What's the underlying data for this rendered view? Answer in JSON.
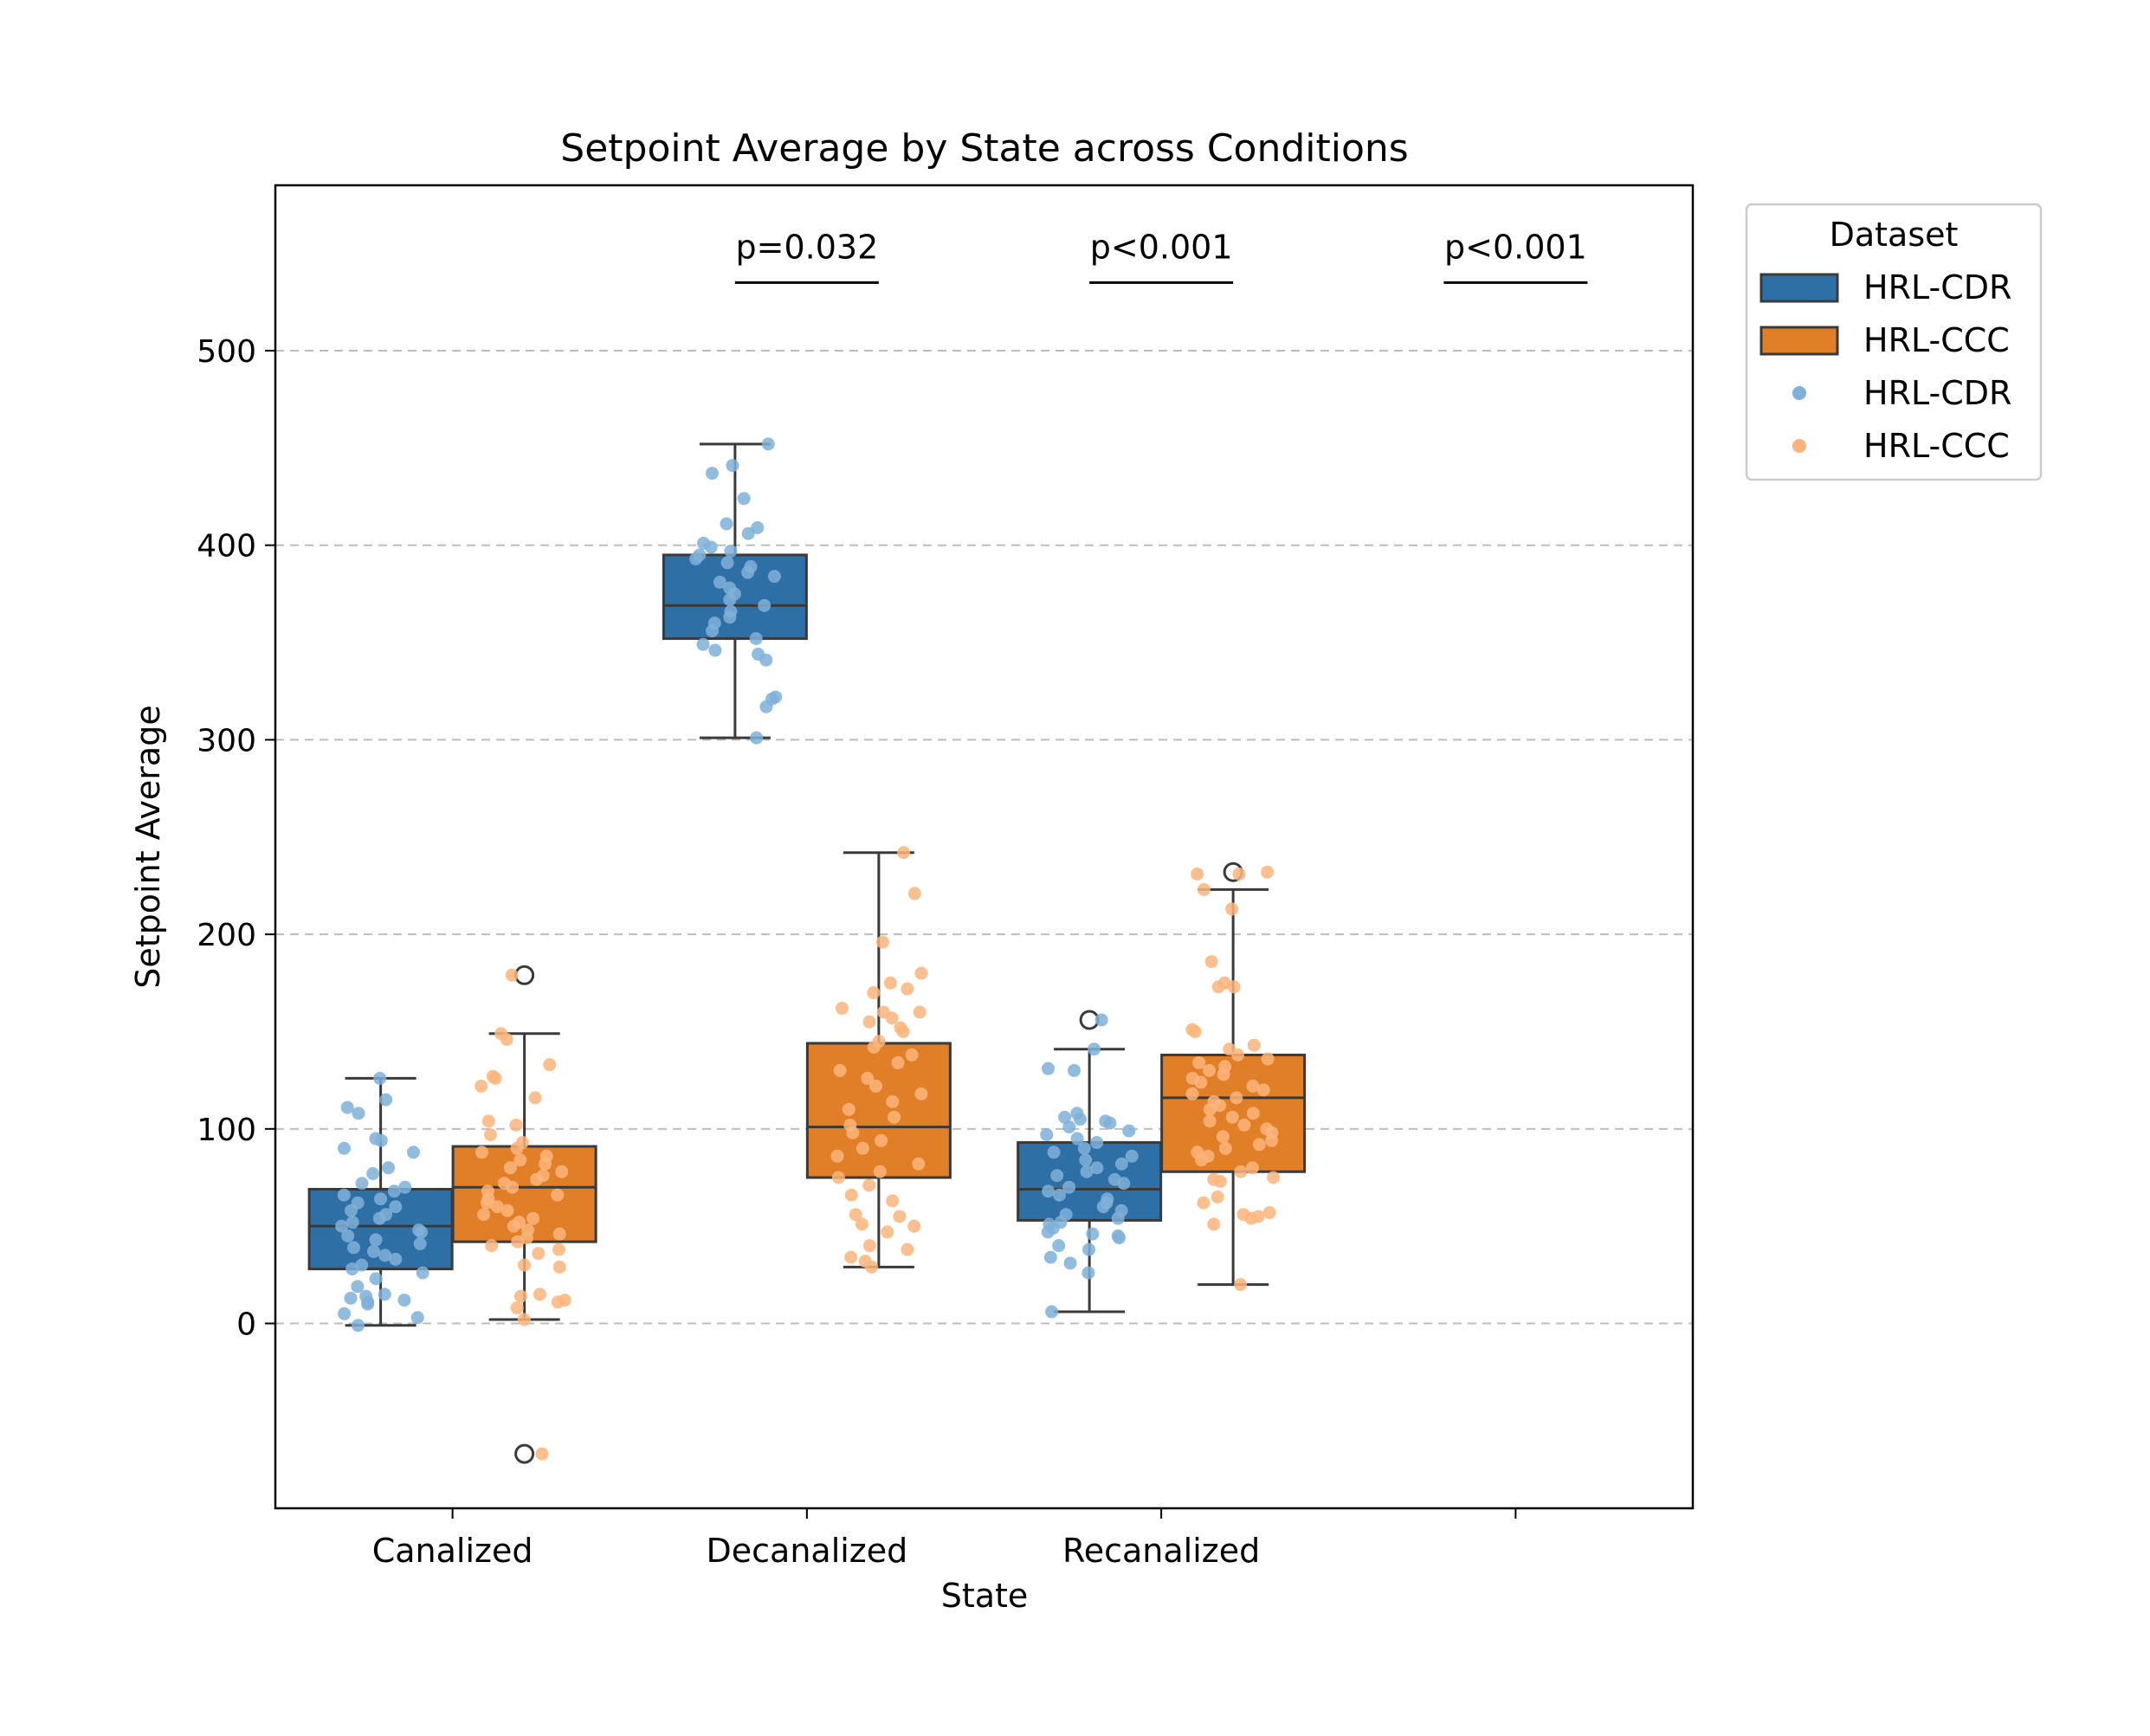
{
  "chart_data": {
    "type": "box",
    "title": "Setpoint Average by State across Conditions",
    "xlabel": "State",
    "ylabel": "Setpoint Average",
    "categories": [
      "Canalized",
      "Decanalized",
      "Recanalized",
      ""
    ],
    "ylim": [
      -95,
      585
    ],
    "yticks": [
      0,
      100,
      200,
      300,
      400,
      500
    ],
    "grid": "y-dashed",
    "legend": {
      "title": "Dataset",
      "placement": "outside-top-right",
      "entries": [
        {
          "label": "HRL-CDR",
          "kind": "box",
          "color": "#2e6fa6"
        },
        {
          "label": "HRL-CCC",
          "kind": "box",
          "color": "#e07f27"
        },
        {
          "label": "HRL-CDR",
          "kind": "point",
          "color": "#7fb0d8"
        },
        {
          "label": "HRL-CCC",
          "kind": "point",
          "color": "#fbb57c"
        }
      ]
    },
    "series": [
      {
        "name": "HRL-CDR",
        "box_color": "#2e6fa6",
        "point_color": "#7fb0d8",
        "boxes": [
          {
            "category": "Canalized",
            "whisker_low": -1,
            "q1": 28,
            "median": 50,
            "q3": 69,
            "whisker_high": 126,
            "outliers": []
          },
          {
            "category": "Decanalized",
            "whisker_low": 301,
            "q1": 352,
            "median": 369,
            "q3": 395,
            "whisker_high": 452,
            "outliers": []
          },
          {
            "category": "Recanalized",
            "whisker_low": 6,
            "q1": 53,
            "median": 69,
            "q3": 93,
            "whisker_high": 141,
            "outliers": [
              156
            ]
          }
        ],
        "points": [
          [
            126,
            115,
            111,
            108,
            95,
            94,
            90,
            88,
            80,
            77,
            72,
            70,
            68,
            66,
            64,
            62,
            60,
            58,
            56,
            54,
            52,
            50,
            48,
            47,
            45,
            43,
            41,
            39,
            37,
            35,
            33,
            30,
            28,
            26,
            23,
            19,
            15,
            14,
            13,
            12,
            11,
            10,
            5,
            3,
            -1
          ],
          [
            452,
            441,
            437,
            424,
            411,
            409,
            406,
            401,
            399,
            397,
            395,
            393,
            391,
            389,
            386,
            384,
            381,
            378,
            375,
            372,
            369,
            366,
            363,
            360,
            356,
            352,
            349,
            346,
            344,
            341,
            322,
            321,
            317,
            301
          ],
          [
            156,
            141,
            131,
            130,
            108,
            106,
            105,
            104,
            103,
            101,
            99,
            97,
            95,
            93,
            90,
            88,
            86,
            84,
            82,
            80,
            78,
            76,
            74,
            72,
            70,
            68,
            66,
            64,
            62,
            60,
            58,
            56,
            54,
            52,
            51,
            49,
            47,
            46,
            45,
            44,
            40,
            38,
            34,
            31,
            26,
            6
          ]
        ]
      },
      {
        "name": "HRL-CCC",
        "box_color": "#e07f27",
        "point_color": "#fbb57c",
        "boxes": [
          {
            "category": "Canalized",
            "whisker_low": 2,
            "q1": 42,
            "median": 70,
            "q3": 91,
            "whisker_high": 149,
            "outliers": [
              179,
              -67
            ]
          },
          {
            "category": "Decanalized",
            "whisker_low": 29,
            "q1": 75,
            "median": 101,
            "q3": 144,
            "whisker_high": 242,
            "outliers": []
          },
          {
            "category": "Recanalized",
            "whisker_low": 20,
            "q1": 78,
            "median": 116,
            "q3": 138,
            "whisker_high": 223,
            "outliers": [
              232
            ]
          }
        ],
        "points": [
          [
            179,
            149,
            146,
            133,
            127,
            126,
            122,
            116,
            104,
            102,
            97,
            93,
            90,
            88,
            86,
            84,
            82,
            80,
            78,
            76,
            74,
            72,
            70,
            68,
            66,
            64,
            62,
            60,
            58,
            56,
            54,
            52,
            50,
            48,
            46,
            44,
            42,
            40,
            38,
            36,
            30,
            29,
            15,
            14,
            12,
            11,
            8,
            2,
            -67
          ],
          [
            242,
            221,
            196,
            180,
            175,
            172,
            170,
            162,
            160,
            160,
            157,
            155,
            152,
            150,
            145,
            142,
            138,
            134,
            130,
            126,
            122,
            118,
            114,
            110,
            106,
            102,
            98,
            94,
            90,
            86,
            82,
            78,
            75,
            71,
            66,
            63,
            56,
            55,
            51,
            50,
            47,
            40,
            38,
            34,
            32,
            29
          ],
          [
            232,
            231,
            231,
            223,
            213,
            186,
            175,
            173,
            173,
            151,
            150,
            143,
            141,
            138,
            136,
            134,
            132,
            130,
            128,
            126,
            124,
            122,
            120,
            118,
            116,
            114,
            112,
            110,
            108,
            106,
            104,
            102,
            100,
            98,
            96,
            94,
            92,
            90,
            88,
            86,
            84,
            80,
            78,
            75,
            74,
            73,
            65,
            62,
            57,
            56,
            55,
            54,
            51,
            20
          ]
        ]
      }
    ],
    "annotations": [
      {
        "category": "Decanalized",
        "text": "p=0.032"
      },
      {
        "category": "Recanalized",
        "text": "p<0.001"
      },
      {
        "category": "",
        "text": "p<0.001"
      }
    ]
  }
}
